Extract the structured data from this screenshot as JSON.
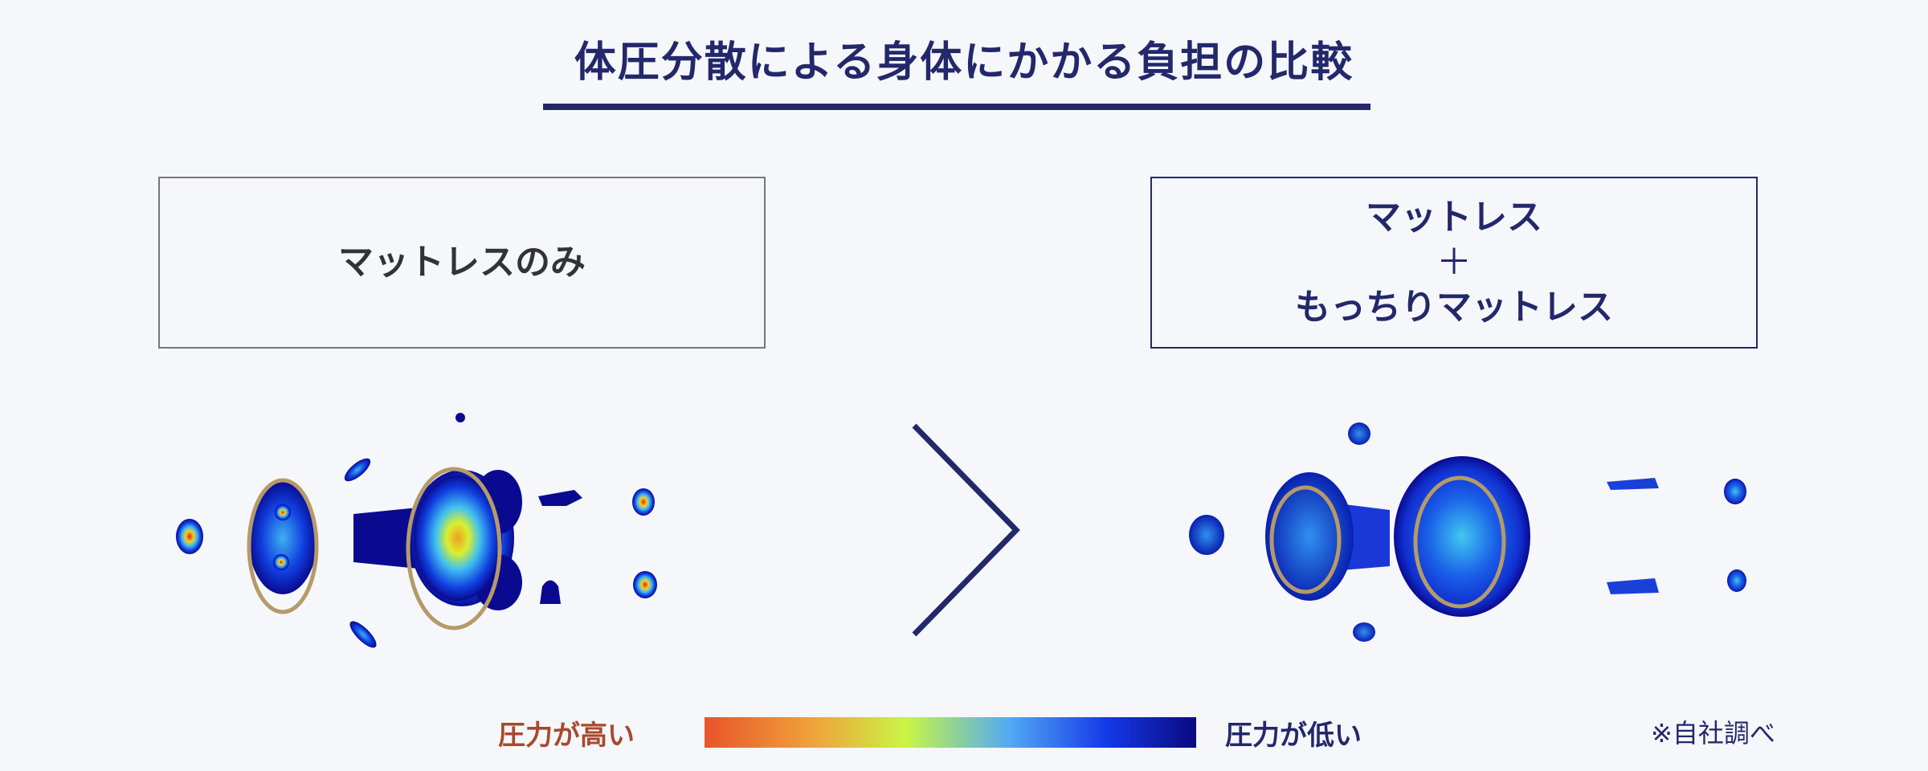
{
  "title": "体圧分散による身体にかかる負担の比較",
  "left_panel": {
    "label": "マットレスのみ"
  },
  "right_panel": {
    "label_lines": [
      "マットレス",
      "＋",
      "もっちりマットレス"
    ]
  },
  "comparison_symbol": "greater-than",
  "legend": {
    "high_label": "圧力が高い",
    "low_label": "圧力が低い",
    "gradient_colors": [
      "#e8542a",
      "#f0a23a",
      "#c9f545",
      "#52aaf4",
      "#1438e8",
      "#0a0a80"
    ]
  },
  "note": "※自社調べ",
  "colors": {
    "accent": "#23286b",
    "highlight_ellipse": "#b59a6a"
  }
}
